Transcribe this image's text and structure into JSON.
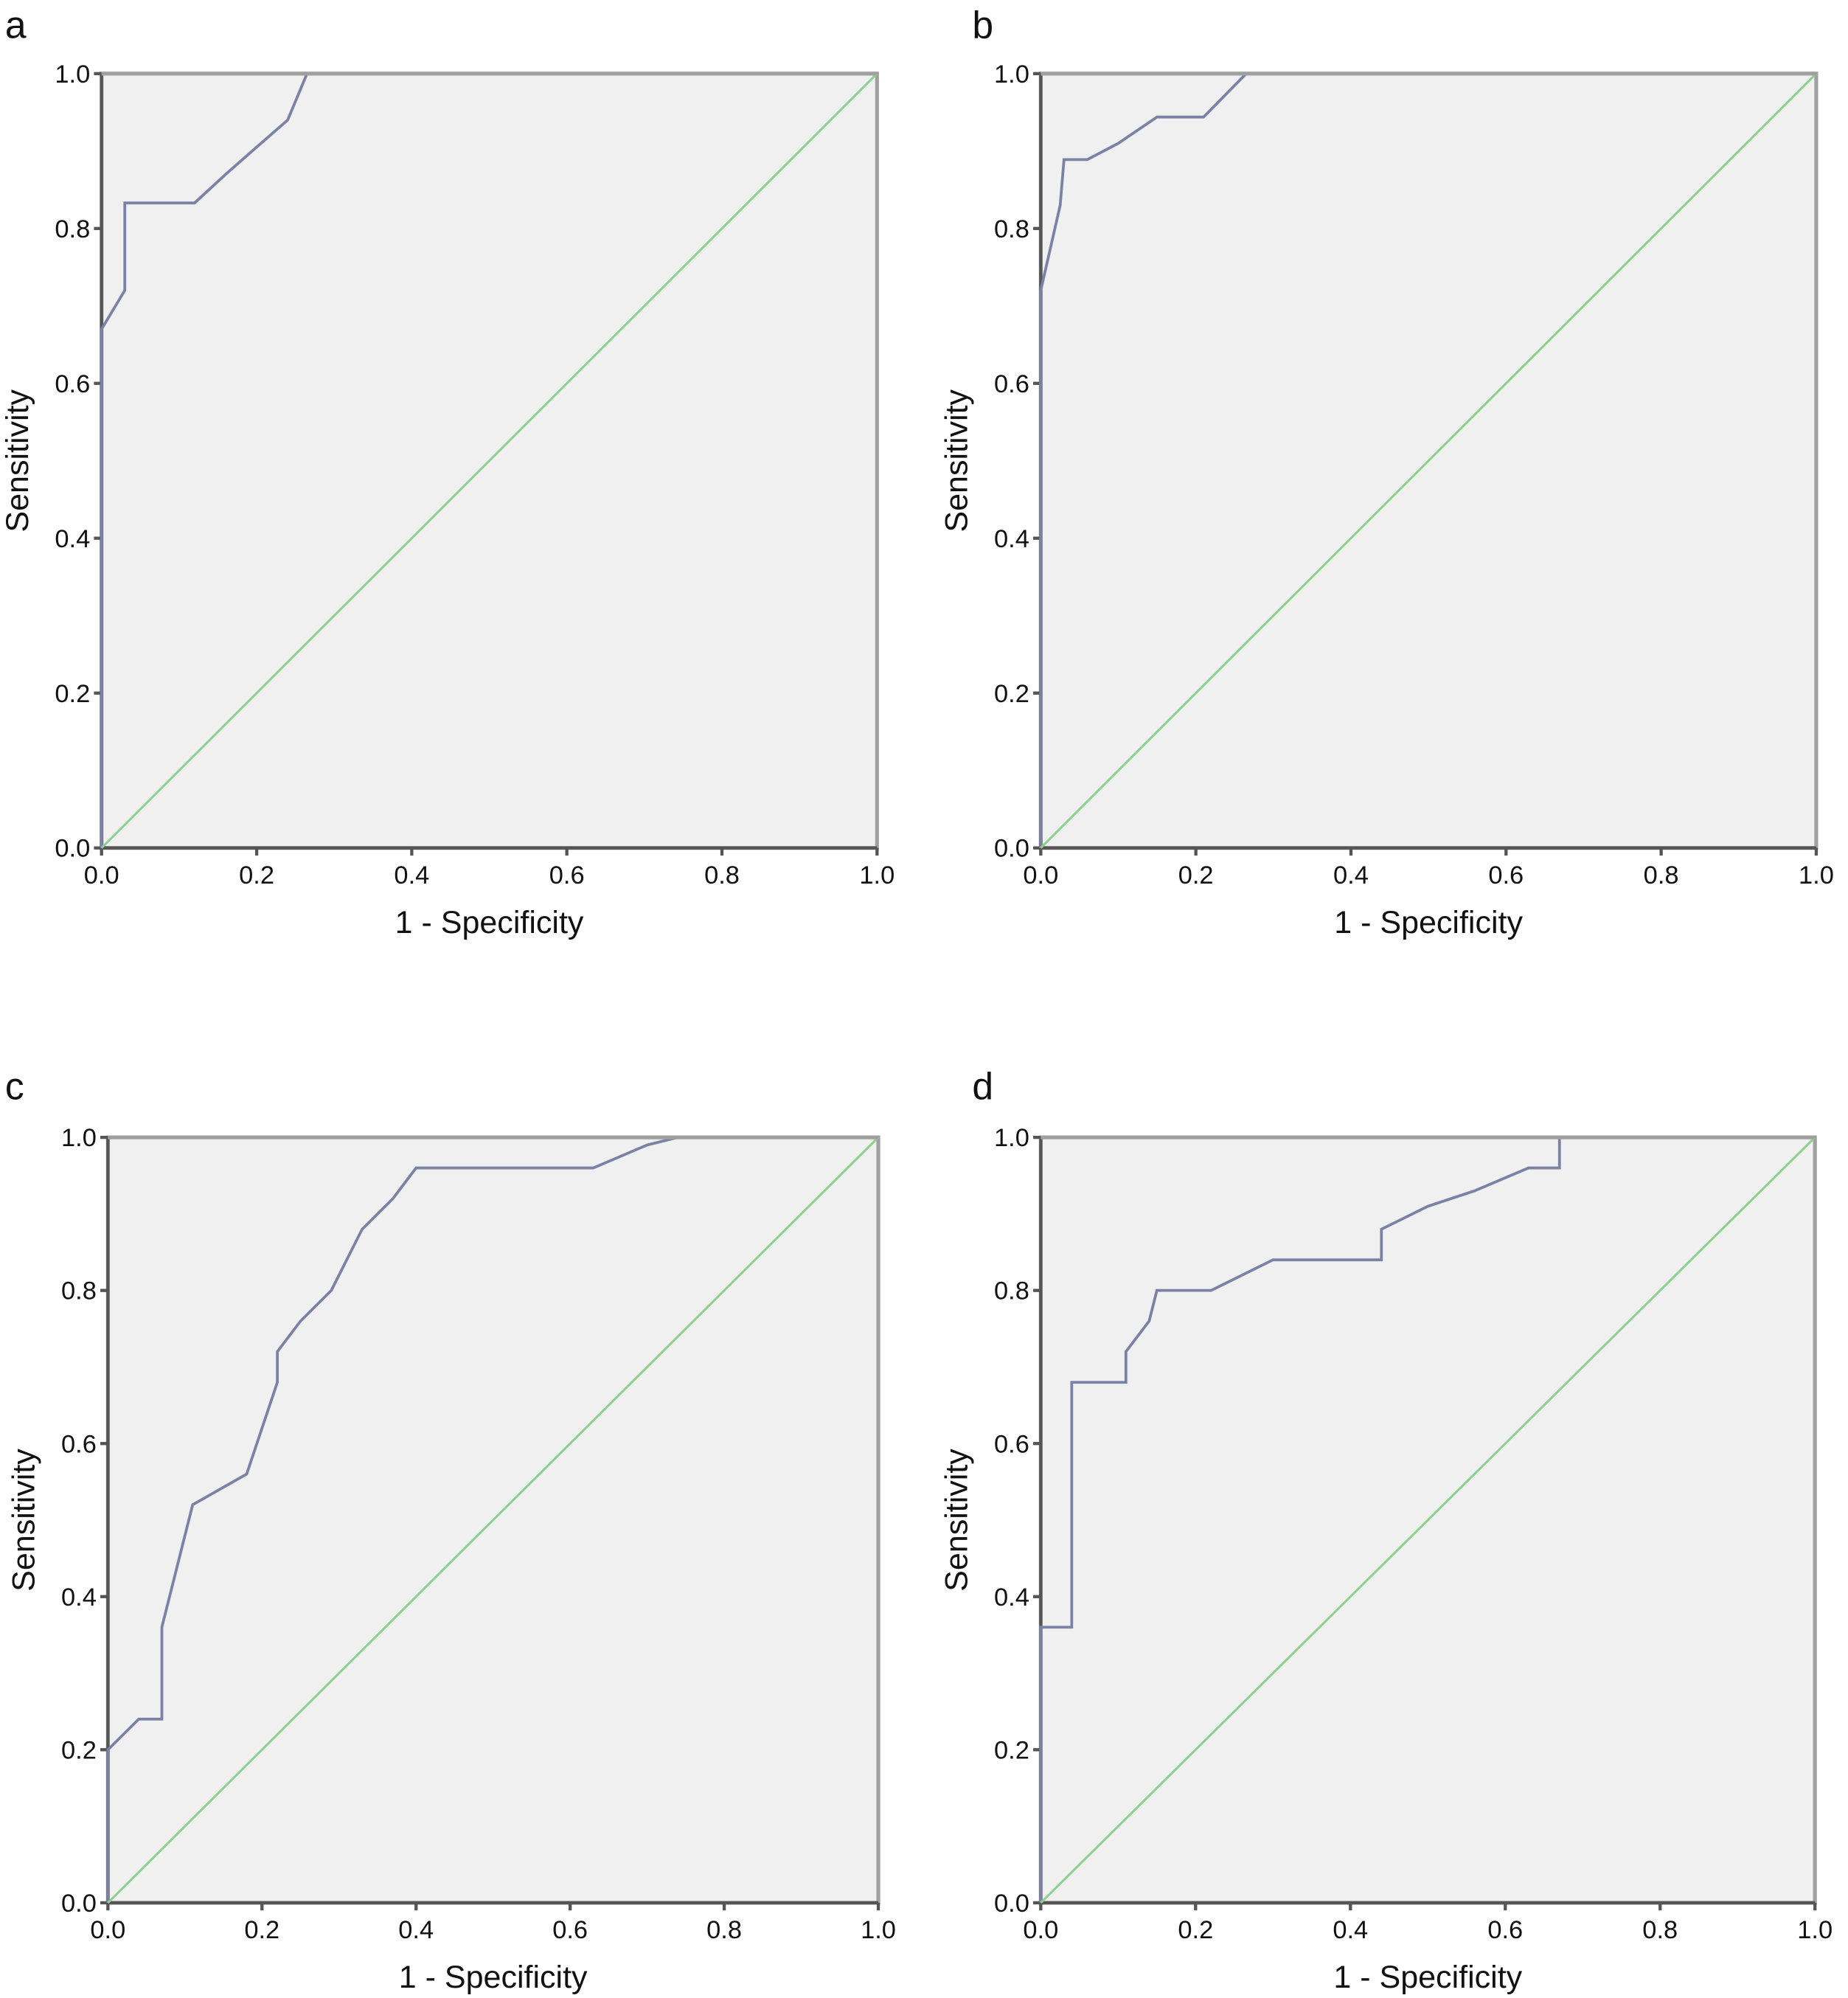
{
  "chart_data": [
    {
      "type": "line",
      "panel_label": "a",
      "xlabel": "1 - Specificity",
      "ylabel": "Sensitivity",
      "xlim": [
        0,
        1
      ],
      "ylim": [
        0,
        1
      ],
      "xticks": [
        "0.0",
        "0.2",
        "0.4",
        "0.6",
        "0.8",
        "1.0"
      ],
      "yticks": [
        "0.0",
        "0.2",
        "0.4",
        "0.6",
        "0.8",
        "1.0"
      ],
      "grid": false,
      "series": [
        {
          "role": "roc",
          "color": "#7c82a6",
          "points": [
            [
              0,
              0
            ],
            [
              0,
              0.67
            ],
            [
              0.03,
              0.72
            ],
            [
              0.03,
              0.833
            ],
            [
              0.12,
              0.833
            ],
            [
              0.16,
              0.87
            ],
            [
              0.2,
              0.905
            ],
            [
              0.24,
              0.94
            ],
            [
              0.265,
              1.0
            ],
            [
              1,
              1
            ]
          ]
        },
        {
          "role": "reference",
          "color": "#8fd08f",
          "points": [
            [
              0,
              0
            ],
            [
              1,
              1
            ]
          ]
        }
      ]
    },
    {
      "type": "line",
      "panel_label": "b",
      "xlabel": "1 - Specificity",
      "ylabel": "Sensitivity",
      "xlim": [
        0,
        1
      ],
      "ylim": [
        0,
        1
      ],
      "xticks": [
        "0.0",
        "0.2",
        "0.4",
        "0.6",
        "0.8",
        "1.0"
      ],
      "yticks": [
        "0.0",
        "0.2",
        "0.4",
        "0.6",
        "0.8",
        "1.0"
      ],
      "grid": false,
      "series": [
        {
          "role": "roc",
          "color": "#7c82a6",
          "points": [
            [
              0,
              0
            ],
            [
              0,
              0.72
            ],
            [
              0.025,
              0.83
            ],
            [
              0.03,
              0.889
            ],
            [
              0.06,
              0.889
            ],
            [
              0.1,
              0.91
            ],
            [
              0.15,
              0.944
            ],
            [
              0.21,
              0.944
            ],
            [
              0.265,
              1.0
            ],
            [
              1,
              1
            ]
          ]
        },
        {
          "role": "reference",
          "color": "#8fd08f",
          "points": [
            [
              0,
              0
            ],
            [
              1,
              1
            ]
          ]
        }
      ]
    },
    {
      "type": "line",
      "panel_label": "c",
      "xlabel": "1 - Specificity",
      "ylabel": "Sensitivity",
      "xlim": [
        0,
        1
      ],
      "ylim": [
        0,
        1
      ],
      "xticks": [
        "0.0",
        "0.2",
        "0.4",
        "0.6",
        "0.8",
        "1.0"
      ],
      "yticks": [
        "0.0",
        "0.2",
        "0.4",
        "0.6",
        "0.8",
        "1.0"
      ],
      "grid": false,
      "series": [
        {
          "role": "roc",
          "color": "#7c82a6",
          "points": [
            [
              0,
              0
            ],
            [
              0,
              0.2
            ],
            [
              0.04,
              0.24
            ],
            [
              0.07,
              0.24
            ],
            [
              0.07,
              0.36
            ],
            [
              0.1,
              0.48
            ],
            [
              0.11,
              0.52
            ],
            [
              0.18,
              0.56
            ],
            [
              0.22,
              0.68
            ],
            [
              0.22,
              0.72
            ],
            [
              0.25,
              0.76
            ],
            [
              0.29,
              0.8
            ],
            [
              0.33,
              0.88
            ],
            [
              0.37,
              0.92
            ],
            [
              0.4,
              0.96
            ],
            [
              0.63,
              0.96
            ],
            [
              0.7,
              0.99
            ],
            [
              0.74,
              1.0
            ],
            [
              1,
              1
            ]
          ]
        },
        {
          "role": "reference",
          "color": "#8fd08f",
          "points": [
            [
              0,
              0
            ],
            [
              1,
              1
            ]
          ]
        }
      ]
    },
    {
      "type": "line",
      "panel_label": "d",
      "xlabel": "1 - Specificity",
      "ylabel": "Sensitivity",
      "xlim": [
        0,
        1
      ],
      "ylim": [
        0,
        1
      ],
      "xticks": [
        "0.0",
        "0.2",
        "0.4",
        "0.6",
        "0.8",
        "1.0"
      ],
      "yticks": [
        "0.0",
        "0.2",
        "0.4",
        "0.6",
        "0.8",
        "1.0"
      ],
      "grid": false,
      "series": [
        {
          "role": "roc",
          "color": "#7c82a6",
          "points": [
            [
              0,
              0
            ],
            [
              0,
              0.36
            ],
            [
              0.04,
              0.36
            ],
            [
              0.04,
              0.68
            ],
            [
              0.11,
              0.68
            ],
            [
              0.11,
              0.72
            ],
            [
              0.14,
              0.76
            ],
            [
              0.15,
              0.8
            ],
            [
              0.22,
              0.8
            ],
            [
              0.3,
              0.84
            ],
            [
              0.44,
              0.84
            ],
            [
              0.44,
              0.88
            ],
            [
              0.5,
              0.91
            ],
            [
              0.56,
              0.93
            ],
            [
              0.63,
              0.96
            ],
            [
              0.67,
              0.96
            ],
            [
              0.67,
              1.0
            ],
            [
              1,
              1
            ]
          ]
        },
        {
          "role": "reference",
          "color": "#8fd08f",
          "points": [
            [
              0,
              0
            ],
            [
              1,
              1
            ]
          ]
        }
      ]
    }
  ],
  "style": {
    "plot_background": "#f0f0f0",
    "frame_color": "#a0a0a0",
    "axis_color": "#555555"
  }
}
